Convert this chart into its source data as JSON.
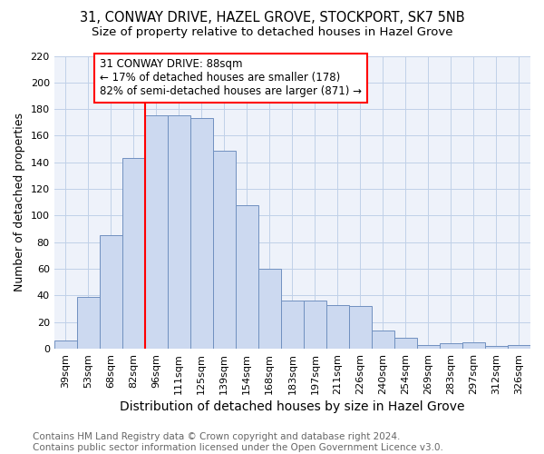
{
  "title_line1": "31, CONWAY DRIVE, HAZEL GROVE, STOCKPORT, SK7 5NB",
  "title_line2": "Size of property relative to detached houses in Hazel Grove",
  "xlabel": "Distribution of detached houses by size in Hazel Grove",
  "ylabel": "Number of detached properties",
  "categories": [
    "39sqm",
    "53sqm",
    "68sqm",
    "82sqm",
    "96sqm",
    "111sqm",
    "125sqm",
    "139sqm",
    "154sqm",
    "168sqm",
    "183sqm",
    "197sqm",
    "211sqm",
    "226sqm",
    "240sqm",
    "254sqm",
    "269sqm",
    "283sqm",
    "297sqm",
    "312sqm",
    "326sqm"
  ],
  "values": [
    6,
    39,
    85,
    143,
    175,
    175,
    173,
    149,
    108,
    60,
    36,
    36,
    33,
    32,
    14,
    8,
    3,
    4,
    5,
    2,
    3
  ],
  "bar_color": "#ccd9f0",
  "bar_edge_color": "#7090c0",
  "annotation_box_text_line1": "31 CONWAY DRIVE: 88sqm",
  "annotation_box_text_line2": "← 17% of detached houses are smaller (178)",
  "annotation_box_text_line3": "82% of semi-detached houses are larger (871) →",
  "annotation_box_color": "white",
  "annotation_box_edge_color": "red",
  "vline_x_index": 3.5,
  "vline_color": "red",
  "ylim": [
    0,
    220
  ],
  "yticks": [
    0,
    20,
    40,
    60,
    80,
    100,
    120,
    140,
    160,
    180,
    200,
    220
  ],
  "grid_color": "#c0d0e8",
  "background_color": "#eef2fa",
  "footer_text": "Contains HM Land Registry data © Crown copyright and database right 2024.\nContains public sector information licensed under the Open Government Licence v3.0.",
  "title_fontsize": 10.5,
  "subtitle_fontsize": 9.5,
  "xlabel_fontsize": 10,
  "ylabel_fontsize": 9,
  "tick_fontsize": 8,
  "annotation_fontsize": 8.5,
  "footer_fontsize": 7.5
}
